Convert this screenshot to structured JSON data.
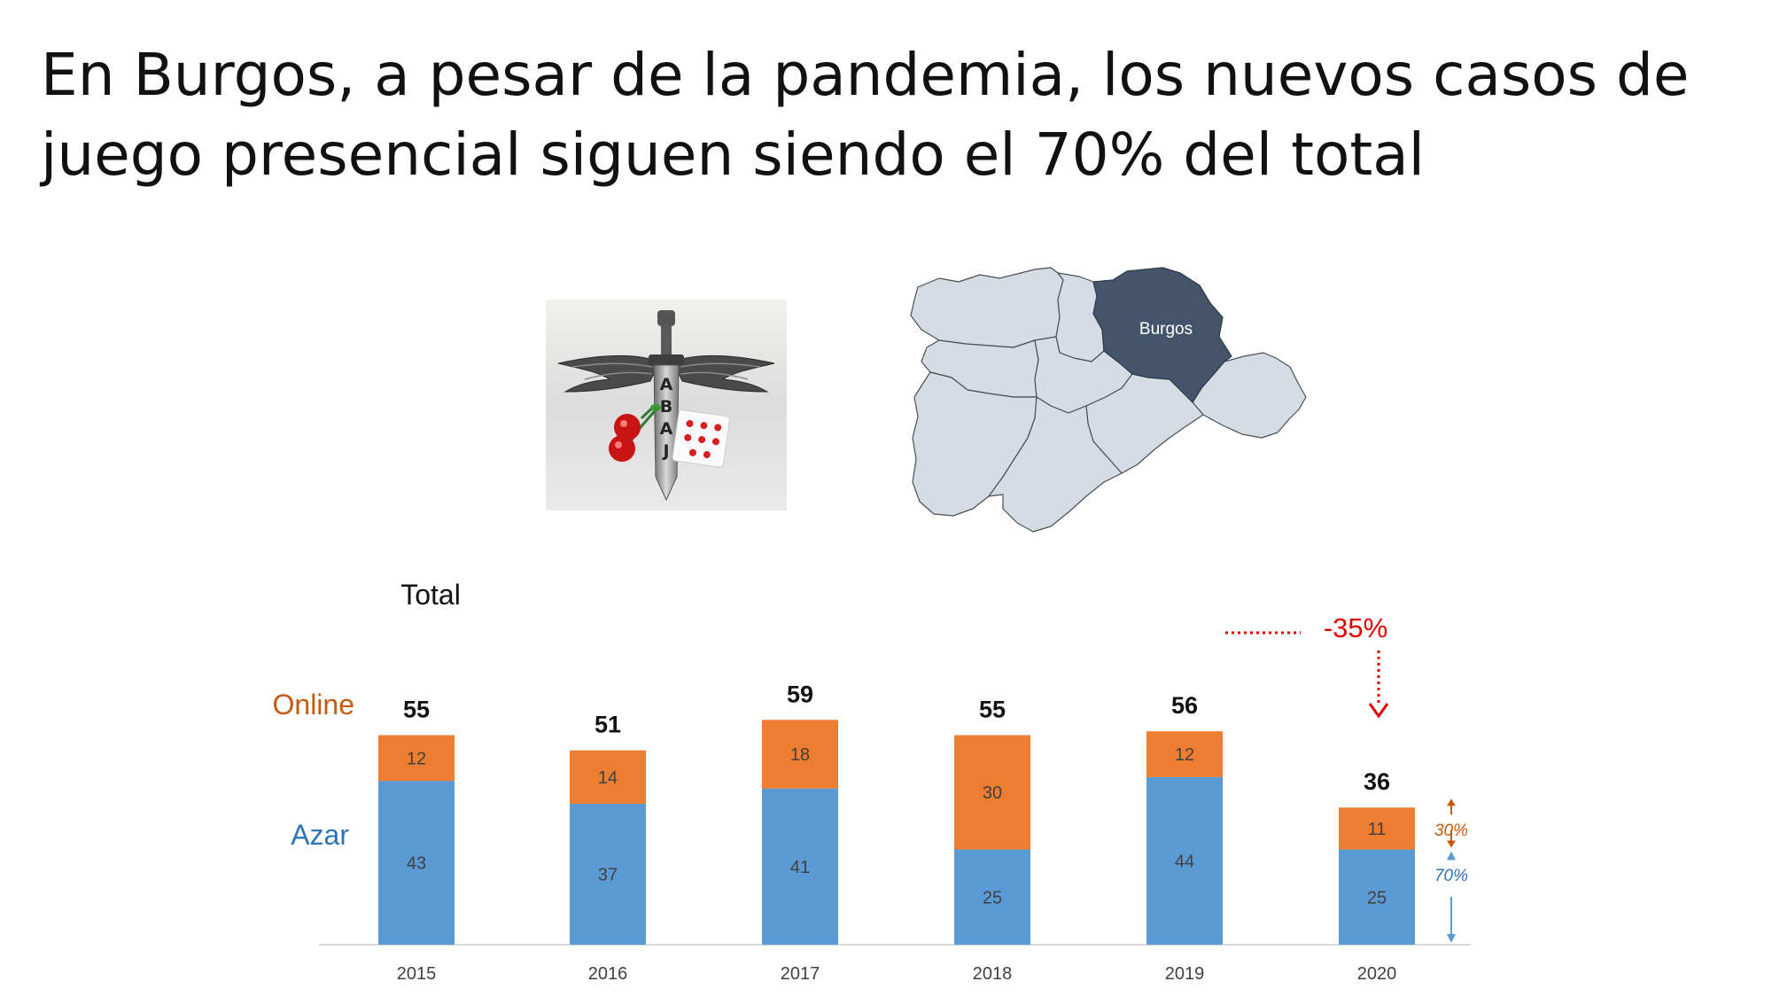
{
  "slide": {
    "title": "En Burgos, a pesar de la pandemia, los nuevos casos de juego presencial siguen siendo el 70% del total"
  },
  "logo": {
    "icon": "sword-wings-cards-logo",
    "letters": "ABAJ"
  },
  "map": {
    "region_label": "Burgos",
    "highlight_color": "#44546a",
    "region_color": "#d6dce4"
  },
  "chart_data": {
    "type": "bar",
    "stacked": true,
    "categories": [
      "2015",
      "2016",
      "2017",
      "2018",
      "2019",
      "2020"
    ],
    "series": [
      {
        "name": "Azar",
        "values": [
          43,
          37,
          41,
          25,
          44,
          25
        ],
        "color": "#5b9bd5"
      },
      {
        "name": "Online",
        "values": [
          12,
          14,
          18,
          30,
          12,
          11
        ],
        "color": "#ed7d31"
      }
    ],
    "totals": [
      55,
      51,
      59,
      55,
      56,
      36
    ],
    "totals_header": "Total",
    "annotations": {
      "change_label": "-35%",
      "online_share": "30%",
      "azar_share": "70%"
    },
    "legend_placement": "left",
    "grid": false,
    "ylim": [
      0,
      60
    ]
  }
}
